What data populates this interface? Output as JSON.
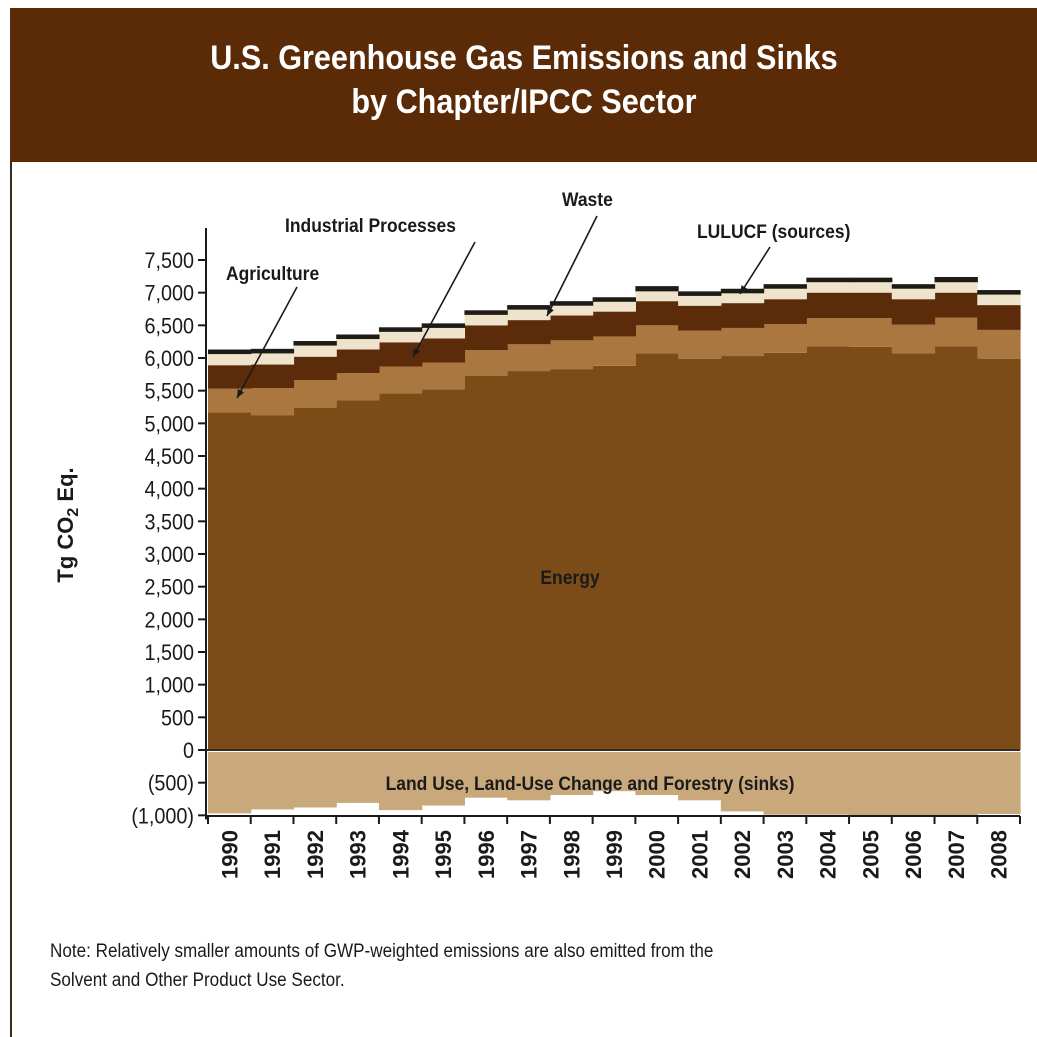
{
  "title_line1": "U.S. Greenhouse Gas Emissions and Sinks",
  "title_line2": "by Chapter/IPCC Sector",
  "note_line1": "Note: Relatively smaller amounts of GWP-weighted emissions are also emitted from the",
  "note_line2": "Solvent and Other Product Use Sector.",
  "colors": {
    "banner": "#5b2a06",
    "energy": "#7b4c18",
    "industrial_processes": "#a9773f",
    "agriculture": "#5c2c0a",
    "waste": "#efe3cc",
    "lulucf_sources": "#1e1a14",
    "lulucf_sinks": "#c9a97c"
  },
  "chart_data": {
    "type": "area",
    "stacked": true,
    "ylabel_prefix": "Tg CO",
    "ylabel_sub": "2",
    "ylabel_suffix": " Eq.",
    "ylim": [
      -1000,
      7500
    ],
    "yticks": [
      7500,
      7000,
      6500,
      6000,
      5500,
      5000,
      4500,
      4000,
      3500,
      3000,
      2500,
      2000,
      1500,
      1000,
      500,
      0,
      -500,
      -1000
    ],
    "ytick_labels": [
      "7,500",
      "7,000",
      "6,500",
      "6,000",
      "5,500",
      "5,000",
      "4,500",
      "4,000",
      "3,500",
      "3,000",
      "2,500",
      "2,000",
      "1,500",
      "1,000",
      "500",
      "0",
      "(500)",
      "(1,000)"
    ],
    "categories": [
      "1990",
      "1991",
      "1992",
      "1993",
      "1994",
      "1995",
      "1996",
      "1997",
      "1998",
      "1999",
      "2000",
      "2001",
      "2002",
      "2003",
      "2004",
      "2005",
      "2006",
      "2007",
      "2008"
    ],
    "series": [
      {
        "name": "Energy",
        "key": "energy",
        "values": [
          5170,
          5120,
          5240,
          5350,
          5460,
          5520,
          5730,
          5800,
          5830,
          5880,
          6070,
          5990,
          6030,
          6080,
          6180,
          6170,
          6070,
          6180,
          5990
        ]
      },
      {
        "name": "Industrial Processes",
        "key": "industrial_processes",
        "values": [
          360,
          420,
          420,
          420,
          410,
          410,
          390,
          410,
          440,
          450,
          430,
          430,
          430,
          440,
          430,
          440,
          440,
          440,
          440
        ]
      },
      {
        "name": "Agriculture",
        "key": "agriculture",
        "values": [
          360,
          360,
          360,
          360,
          370,
          370,
          380,
          370,
          380,
          380,
          370,
          380,
          380,
          380,
          390,
          390,
          390,
          380,
          380
        ]
      },
      {
        "name": "Waste",
        "key": "waste",
        "values": [
          170,
          170,
          170,
          160,
          160,
          160,
          160,
          160,
          150,
          150,
          150,
          150,
          150,
          160,
          160,
          160,
          160,
          160,
          160
        ]
      },
      {
        "name": "LULUCF (sources)",
        "key": "lulucf_sources",
        "values": [
          70,
          70,
          70,
          70,
          70,
          70,
          70,
          70,
          70,
          70,
          80,
          70,
          70,
          70,
          70,
          70,
          70,
          80,
          70
        ]
      },
      {
        "name": "Land Use, Land-Use Change and Forestry (sinks)",
        "key": "lulucf_sinks",
        "values": [
          -970,
          -910,
          -880,
          -810,
          -920,
          -850,
          -730,
          -770,
          -690,
          -630,
          -690,
          -770,
          -940,
          -990,
          -990,
          -1010,
          -1000,
          -1010,
          -980
        ]
      }
    ],
    "annotations": {
      "agriculture": "Agriculture",
      "industrial_processes": "Industrial Processes",
      "waste": "Waste",
      "lulucf_sources": "LULUCF (sources)",
      "energy": "Energy",
      "lulucf_sinks": "Land Use, Land-Use Change and Forestry (sinks)"
    }
  }
}
